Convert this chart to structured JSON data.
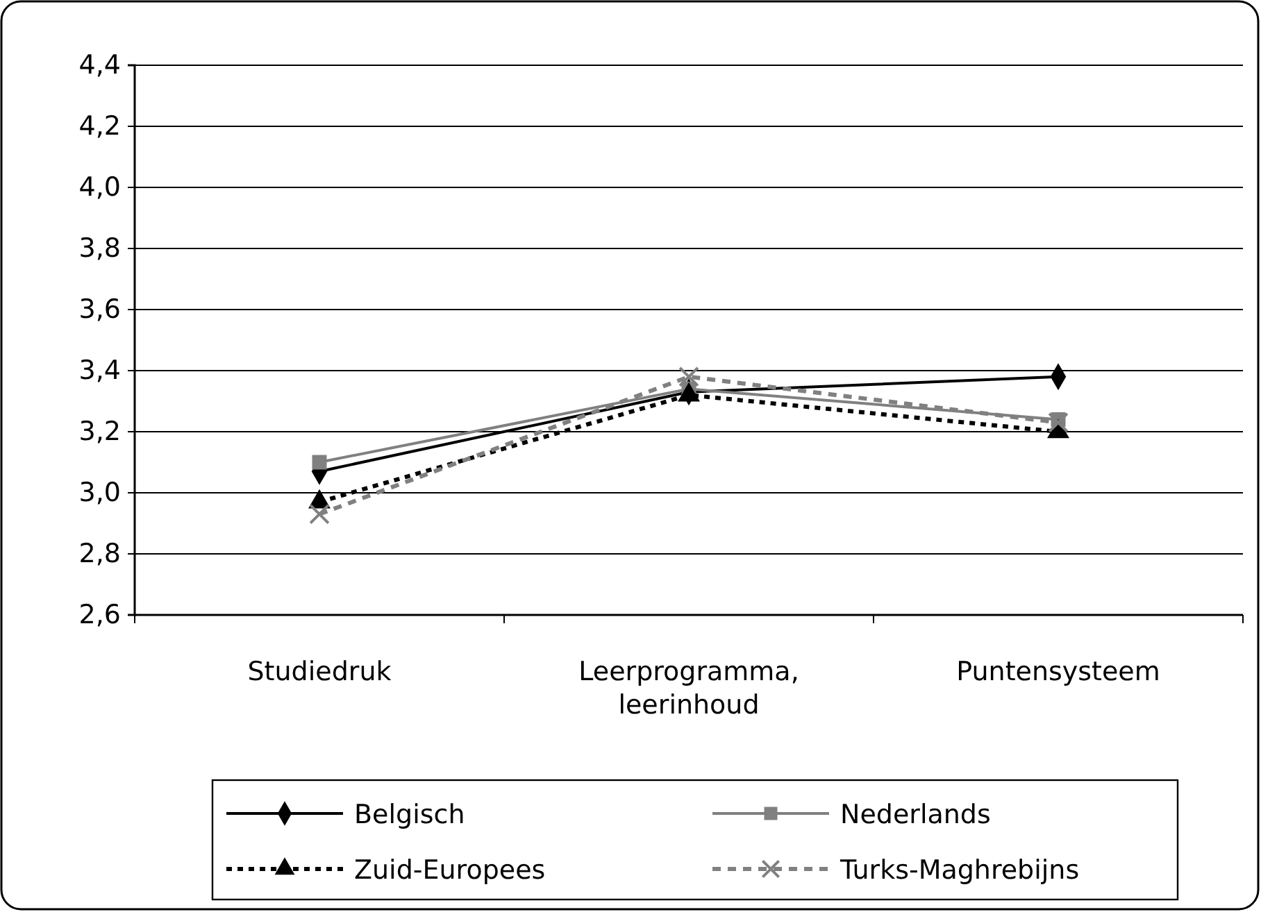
{
  "chart_data": {
    "type": "line",
    "categories": [
      "Studiedruk",
      "Leerprogramma, leerinhoud",
      "Puntensysteem"
    ],
    "series": [
      {
        "name": "Belgisch",
        "color": "#000000",
        "values": [
          3.07,
          3.33,
          3.38
        ],
        "marker": "diamond",
        "line_style": "solid"
      },
      {
        "name": "Nederlands",
        "color": "#808080",
        "values": [
          3.1,
          3.34,
          3.24
        ],
        "marker": "square",
        "line_style": "solid"
      },
      {
        "name": "Zuid-Europees",
        "color": "#000000",
        "values": [
          2.97,
          3.32,
          3.2
        ],
        "marker": "triangle",
        "line_style": "dotted"
      },
      {
        "name": "Turks-Maghrebijns",
        "color": "#808080",
        "values": [
          2.93,
          3.38,
          3.23
        ],
        "marker": "cross",
        "line_style": "dashed"
      }
    ],
    "ylim": [
      2.6,
      4.4
    ],
    "yticks": [
      {
        "value": 2.6,
        "label": "2,6"
      },
      {
        "value": 2.8,
        "label": "2,8"
      },
      {
        "value": 3.0,
        "label": "3,0"
      },
      {
        "value": 3.2,
        "label": "3,2"
      },
      {
        "value": 3.4,
        "label": "3,4"
      },
      {
        "value": 3.6,
        "label": "3,6"
      },
      {
        "value": 3.8,
        "label": "3,8"
      },
      {
        "value": 4.0,
        "label": "4,0"
      },
      {
        "value": 4.2,
        "label": "4,2"
      },
      {
        "value": 4.4,
        "label": "4,4"
      }
    ],
    "grid": "y",
    "legend": "bottom"
  }
}
